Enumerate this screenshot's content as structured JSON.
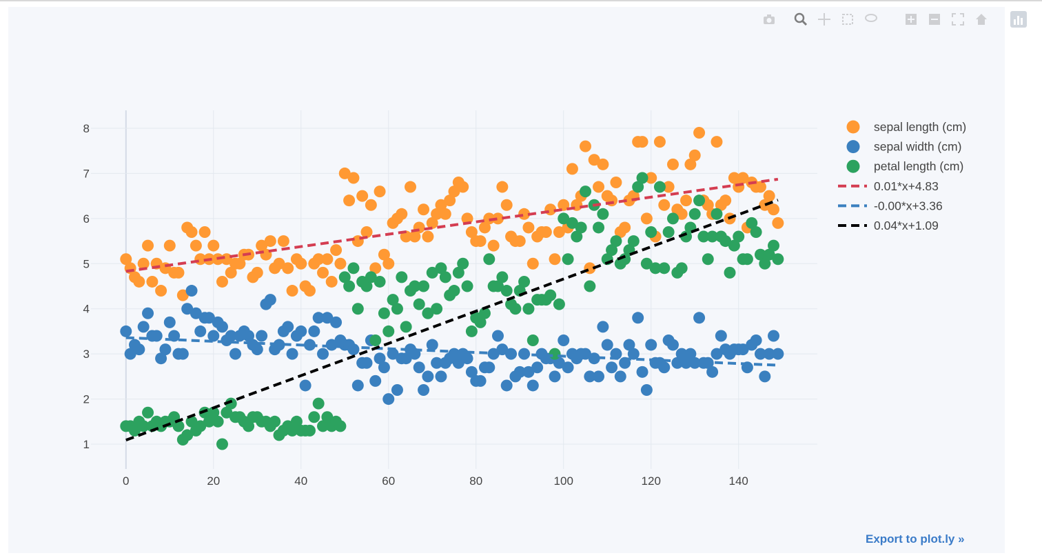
{
  "modebar": {
    "icons": [
      "camera-icon",
      "zoom-icon",
      "pan-icon",
      "box-select-icon",
      "lasso-icon",
      "zoom-in-icon",
      "zoom-out-icon",
      "autoscale-icon",
      "home-icon",
      "plotly-logo-icon"
    ]
  },
  "export_link": "Export to plot.ly »",
  "chart_data": {
    "type": "scatter",
    "title": "",
    "xlabel": "",
    "ylabel": "",
    "xlim": [
      -8,
      158
    ],
    "ylim": [
      0.45,
      8.55
    ],
    "xticks": [
      0,
      20,
      40,
      60,
      80,
      100,
      120,
      140
    ],
    "yticks": [
      1,
      2,
      3,
      4,
      5,
      6,
      7,
      8
    ],
    "grid": true,
    "legend_position": "top-right",
    "x": [
      0,
      1,
      2,
      3,
      4,
      5,
      6,
      7,
      8,
      9,
      10,
      11,
      12,
      13,
      14,
      15,
      16,
      17,
      18,
      19,
      20,
      21,
      22,
      23,
      24,
      25,
      26,
      27,
      28,
      29,
      30,
      31,
      32,
      33,
      34,
      35,
      36,
      37,
      38,
      39,
      40,
      41,
      42,
      43,
      44,
      45,
      46,
      47,
      48,
      49,
      50,
      51,
      52,
      53,
      54,
      55,
      56,
      57,
      58,
      59,
      60,
      61,
      62,
      63,
      64,
      65,
      66,
      67,
      68,
      69,
      70,
      71,
      72,
      73,
      74,
      75,
      76,
      77,
      78,
      79,
      80,
      81,
      82,
      83,
      84,
      85,
      86,
      87,
      88,
      89,
      90,
      91,
      92,
      93,
      94,
      95,
      96,
      97,
      98,
      99,
      100,
      101,
      102,
      103,
      104,
      105,
      106,
      107,
      108,
      109,
      110,
      111,
      112,
      113,
      114,
      115,
      116,
      117,
      118,
      119,
      120,
      121,
      122,
      123,
      124,
      125,
      126,
      127,
      128,
      129,
      130,
      131,
      132,
      133,
      134,
      135,
      136,
      137,
      138,
      139,
      140,
      141,
      142,
      143,
      144,
      145,
      146,
      147,
      148,
      149
    ],
    "series": [
      {
        "name": "sepal length (cm)",
        "mode": "markers",
        "color": "#ff9933",
        "values": [
          5.1,
          4.9,
          4.7,
          4.6,
          5.0,
          5.4,
          4.6,
          5.0,
          4.4,
          4.9,
          5.4,
          4.8,
          4.8,
          4.3,
          5.8,
          5.7,
          5.4,
          5.1,
          5.7,
          5.1,
          5.4,
          5.1,
          4.6,
          5.1,
          4.8,
          5.0,
          5.0,
          5.2,
          5.2,
          4.7,
          4.8,
          5.4,
          5.2,
          5.5,
          4.9,
          5.0,
          5.5,
          4.9,
          4.4,
          5.1,
          5.0,
          4.5,
          4.4,
          5.0,
          5.1,
          4.8,
          5.1,
          4.6,
          5.3,
          5.0,
          7.0,
          6.4,
          6.9,
          5.5,
          6.5,
          5.7,
          6.3,
          4.9,
          6.6,
          5.2,
          5.0,
          5.9,
          6.0,
          6.1,
          5.6,
          6.7,
          5.6,
          5.8,
          6.2,
          5.6,
          5.9,
          6.1,
          6.3,
          6.1,
          6.4,
          6.6,
          6.8,
          6.7,
          6.0,
          5.7,
          5.5,
          5.5,
          5.8,
          6.0,
          5.4,
          6.0,
          6.7,
          6.3,
          5.6,
          5.5,
          5.5,
          6.1,
          5.8,
          5.0,
          5.6,
          5.7,
          5.7,
          6.2,
          5.1,
          5.7,
          6.3,
          5.8,
          7.1,
          6.3,
          6.5,
          7.6,
          4.9,
          7.3,
          6.7,
          7.2,
          6.5,
          6.4,
          6.8,
          5.7,
          5.8,
          6.4,
          6.5,
          7.7,
          7.7,
          6.0,
          6.9,
          5.6,
          7.7,
          6.3,
          6.7,
          7.2,
          6.2,
          6.1,
          6.4,
          7.2,
          7.4,
          7.9,
          6.4,
          6.3,
          6.1,
          7.7,
          6.3,
          6.4,
          6.0,
          6.9,
          6.7,
          6.9,
          5.8,
          6.8,
          6.7,
          6.7,
          6.3,
          6.5,
          6.2,
          5.9
        ]
      },
      {
        "name": "sepal width (cm)",
        "mode": "markers",
        "color": "#3a80bf",
        "values": [
          3.5,
          3.0,
          3.2,
          3.1,
          3.6,
          3.9,
          3.4,
          3.4,
          2.9,
          3.1,
          3.7,
          3.4,
          3.0,
          3.0,
          4.0,
          4.4,
          3.9,
          3.5,
          3.8,
          3.8,
          3.4,
          3.7,
          3.6,
          3.3,
          3.4,
          3.0,
          3.4,
          3.5,
          3.4,
          3.2,
          3.1,
          3.4,
          4.1,
          4.2,
          3.1,
          3.2,
          3.5,
          3.6,
          3.0,
          3.4,
          3.5,
          2.3,
          3.2,
          3.5,
          3.8,
          3.0,
          3.8,
          3.2,
          3.7,
          3.3,
          3.2,
          3.2,
          3.1,
          2.3,
          2.8,
          2.8,
          3.3,
          2.4,
          2.9,
          2.7,
          2.0,
          3.0,
          2.2,
          2.9,
          2.9,
          3.1,
          3.0,
          2.7,
          2.2,
          2.5,
          3.2,
          2.8,
          2.5,
          2.8,
          2.9,
          3.0,
          2.8,
          3.0,
          2.9,
          2.6,
          2.4,
          2.4,
          2.7,
          2.7,
          3.0,
          3.4,
          3.1,
          2.3,
          3.0,
          2.5,
          2.6,
          3.0,
          2.6,
          2.3,
          2.7,
          3.0,
          2.9,
          2.9,
          2.5,
          2.8,
          3.3,
          2.7,
          3.0,
          2.9,
          3.0,
          3.0,
          2.5,
          2.9,
          2.5,
          3.6,
          3.2,
          2.7,
          3.0,
          2.5,
          2.8,
          3.2,
          3.0,
          3.8,
          2.6,
          2.2,
          3.2,
          2.8,
          2.8,
          2.7,
          3.3,
          3.2,
          2.8,
          3.0,
          2.8,
          3.0,
          2.8,
          3.8,
          2.8,
          2.8,
          2.6,
          3.0,
          3.4,
          3.1,
          3.0,
          3.1,
          3.1,
          3.1,
          2.7,
          3.2,
          3.3,
          3.0,
          2.5,
          3.0,
          3.4,
          3.0
        ]
      },
      {
        "name": "petal length (cm)",
        "mode": "markers",
        "color": "#2ca25f",
        "values": [
          1.4,
          1.4,
          1.3,
          1.5,
          1.4,
          1.7,
          1.4,
          1.5,
          1.4,
          1.5,
          1.5,
          1.6,
          1.4,
          1.1,
          1.2,
          1.5,
          1.3,
          1.4,
          1.7,
          1.5,
          1.7,
          1.5,
          1.0,
          1.7,
          1.9,
          1.6,
          1.6,
          1.5,
          1.4,
          1.6,
          1.6,
          1.5,
          1.5,
          1.4,
          1.5,
          1.2,
          1.3,
          1.4,
          1.3,
          1.5,
          1.3,
          1.3,
          1.3,
          1.6,
          1.9,
          1.4,
          1.6,
          1.4,
          1.5,
          1.4,
          4.7,
          4.5,
          4.9,
          4.0,
          4.6,
          4.5,
          4.7,
          3.3,
          4.6,
          3.9,
          3.5,
          4.2,
          4.0,
          4.7,
          3.6,
          4.4,
          4.5,
          4.1,
          4.5,
          3.9,
          4.8,
          4.0,
          4.9,
          4.7,
          4.3,
          4.4,
          4.8,
          5.0,
          4.5,
          3.5,
          3.8,
          3.7,
          3.9,
          5.1,
          4.5,
          4.5,
          4.7,
          4.4,
          4.1,
          4.0,
          4.4,
          4.6,
          4.0,
          3.3,
          4.2,
          4.2,
          4.2,
          4.3,
          3.0,
          4.1,
          6.0,
          5.1,
          5.9,
          5.6,
          5.8,
          6.6,
          4.5,
          6.3,
          5.8,
          6.1,
          5.1,
          5.3,
          5.5,
          5.0,
          5.1,
          5.3,
          5.5,
          6.7,
          6.9,
          5.0,
          5.7,
          4.9,
          6.7,
          4.9,
          5.7,
          6.0,
          4.8,
          4.9,
          5.6,
          5.8,
          6.1,
          6.4,
          5.6,
          5.1,
          5.6,
          6.1,
          5.6,
          5.5,
          4.8,
          5.4,
          5.6,
          5.1,
          5.1,
          5.9,
          5.7,
          5.2,
          5.0,
          5.2,
          5.4,
          5.1
        ]
      },
      {
        "name": "0.01*x+4.83",
        "mode": "dashed-line",
        "color": "#d43d51",
        "slope": 0.0137,
        "intercept": 4.83
      },
      {
        "name": "-0.00*x+3.36",
        "mode": "dashed-line",
        "color": "#3a80bf",
        "slope": -0.0041,
        "intercept": 3.36
      },
      {
        "name": "0.04*x+1.09",
        "mode": "dashed-line",
        "color": "#000000",
        "slope": 0.0357,
        "intercept": 1.09
      }
    ]
  }
}
